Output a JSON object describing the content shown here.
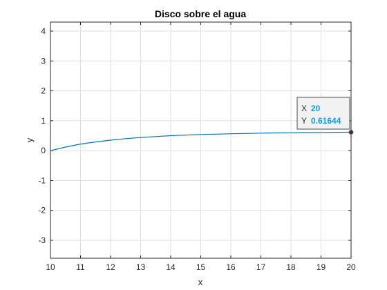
{
  "chart_data": {
    "type": "line",
    "title": "Disco sobre el agua",
    "xlabel": "x",
    "ylabel": "y",
    "xlim": [
      10,
      20
    ],
    "ylim": [
      -3.6,
      4.3
    ],
    "xticks": [
      10,
      11,
      12,
      13,
      14,
      15,
      16,
      17,
      18,
      19,
      20
    ],
    "yticks": [
      -3,
      -2,
      -1,
      0,
      1,
      2,
      3,
      4
    ],
    "grid": true,
    "series": [
      {
        "color": "#0072BD",
        "x": [
          10,
          10.5,
          11,
          11.5,
          12,
          12.5,
          13,
          13.5,
          14,
          14.5,
          15,
          15.5,
          16,
          16.5,
          17,
          17.5,
          18,
          18.5,
          19,
          19.5,
          20
        ],
        "y": [
          0.0,
          0.12,
          0.22,
          0.29,
          0.35,
          0.4,
          0.44,
          0.47,
          0.5,
          0.52,
          0.54,
          0.55,
          0.565,
          0.575,
          0.585,
          0.592,
          0.598,
          0.604,
          0.609,
          0.613,
          0.61644
        ]
      }
    ],
    "datatip": {
      "x_label": "X",
      "x_value": "20",
      "y_label": "Y",
      "y_value": "0.61644",
      "x": 20,
      "y": 0.61644
    }
  },
  "colors": {
    "axis": "#262626",
    "grid": "#dfdfdf",
    "datatip_value": "#0e9ae6",
    "datatip_label": "#333333",
    "datatip_border": "#4a4a4a"
  }
}
